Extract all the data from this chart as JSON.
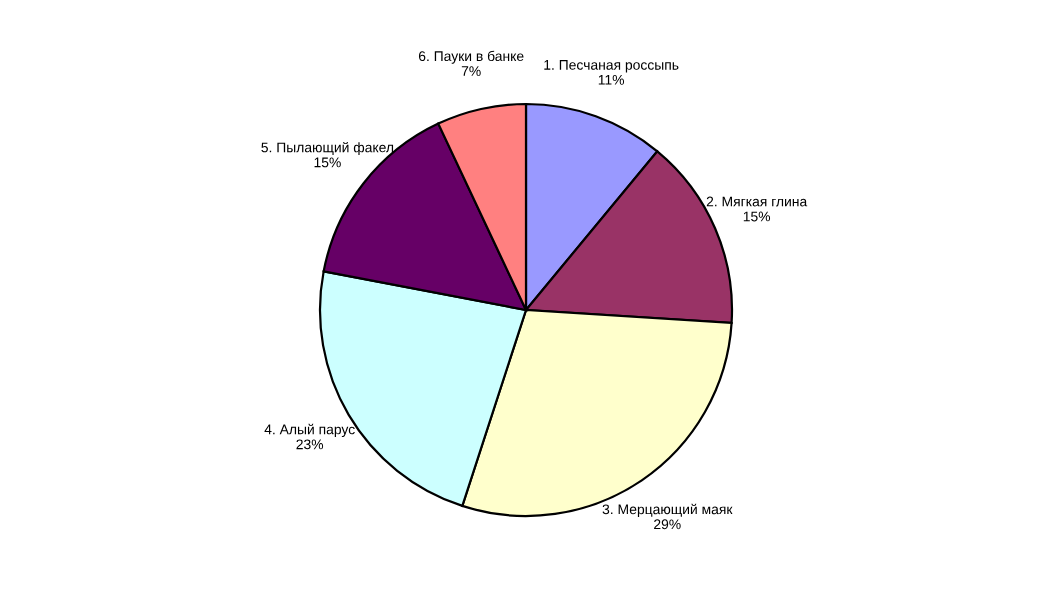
{
  "chart_data": {
    "type": "pie",
    "categories": [
      "1. Песчаная россыпь",
      "2. Мягкая глина",
      "3. Мерцающий маяк",
      "4. Алый парус",
      "5. Пылающий факел",
      "6. Пауки в банке"
    ],
    "values": [
      11,
      15,
      29,
      23,
      15,
      7
    ],
    "value_labels": [
      "11%",
      "15%",
      "29%",
      "23%",
      "15%",
      "7%"
    ],
    "colors": [
      "#9999ff",
      "#993366",
      "#ffffcc",
      "#ccffff",
      "#660066",
      "#ff8080"
    ],
    "legend": false
  }
}
